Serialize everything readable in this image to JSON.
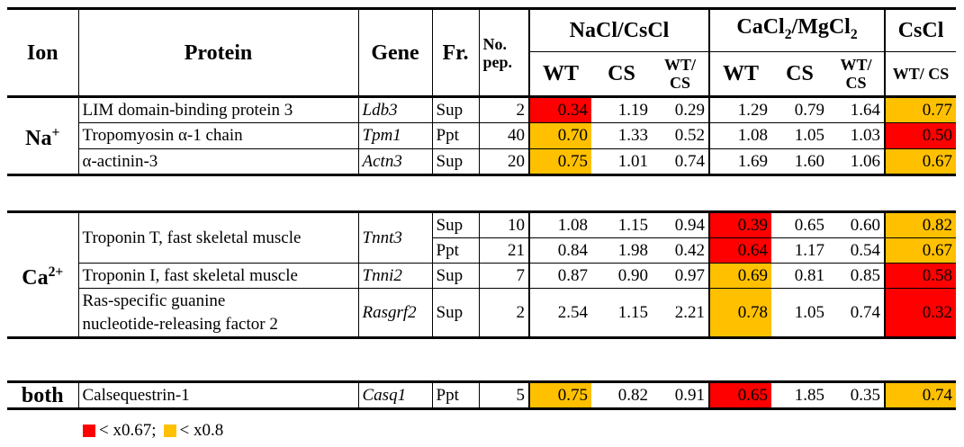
{
  "header": {
    "ion": "Ion",
    "protein": "Protein",
    "gene": "Gene",
    "fr": "Fr.",
    "nopep": "No. pep.",
    "g1": "NaCl/CsCl",
    "g2_a": "CaCl",
    "g2_s1": "2",
    "g2_b": "/MgCl",
    "g2_s2": "2",
    "g3": "CsCl",
    "wt": "WT",
    "cs": "CS",
    "wtcs": "WT/ CS"
  },
  "groups": {
    "na": {
      "ion": "Na",
      "sup": "+"
    },
    "ca": {
      "ion": "Ca",
      "sup": "2+"
    },
    "both": {
      "ion": "both"
    }
  },
  "rows": {
    "r1": {
      "protein": "LIM domain-binding protein 3",
      "gene": "Ldb3",
      "fr": "Sup",
      "pep": "2",
      "v": [
        "0.34",
        "1.19",
        "0.29",
        "1.29",
        "0.79",
        "1.64",
        "0.77"
      ]
    },
    "r2": {
      "protein": "Tropomyosin α-1 chain",
      "gene": "Tpm1",
      "fr": "Ppt",
      "pep": "40",
      "v": [
        "0.70",
        "1.33",
        "0.52",
        "1.08",
        "1.05",
        "1.03",
        "0.50"
      ]
    },
    "r3": {
      "protein": "α-actinin-3",
      "gene": "Actn3",
      "fr": "Sup",
      "pep": "20",
      "v": [
        "0.75",
        "1.01",
        "0.74",
        "1.69",
        "1.60",
        "1.06",
        "0.67"
      ]
    },
    "r4": {
      "protein": "Troponin T, fast skeletal muscle",
      "gene": "Tnnt3",
      "fr": "Sup",
      "pep": "10",
      "v": [
        "1.08",
        "1.15",
        "0.94",
        "0.39",
        "0.65",
        "0.60",
        "0.82"
      ]
    },
    "r5": {
      "fr": "Ppt",
      "pep": "21",
      "v": [
        "0.84",
        "1.98",
        "0.42",
        "0.64",
        "1.17",
        "0.54",
        "0.67"
      ]
    },
    "r6": {
      "protein": "Troponin I, fast skeletal muscle",
      "gene": "Tnni2",
      "fr": "Sup",
      "pep": "7",
      "v": [
        "0.87",
        "0.90",
        "0.97",
        "0.69",
        "0.81",
        "0.85",
        "0.58"
      ]
    },
    "r7": {
      "protein_l1": "Ras-specific guanine",
      "protein_l2": "nucleotide-releasing factor 2",
      "gene": "Rasgrf2",
      "fr": "Sup",
      "pep": "2",
      "v": [
        "2.54",
        "1.15",
        "2.21",
        "0.78",
        "1.05",
        "0.74",
        "0.32"
      ]
    },
    "r8": {
      "protein": "Calsequestrin-1",
      "gene": "Casq1",
      "fr": "Ppt",
      "pep": "5",
      "v": [
        "0.75",
        "0.82",
        "0.91",
        "0.65",
        "1.85",
        "0.35",
        "0.74"
      ]
    }
  },
  "legend": {
    "red_label": "< x0.67;",
    "orange_label": "< x0.8",
    "red_color": "#ff0000",
    "orange_color": "#ffc000"
  }
}
